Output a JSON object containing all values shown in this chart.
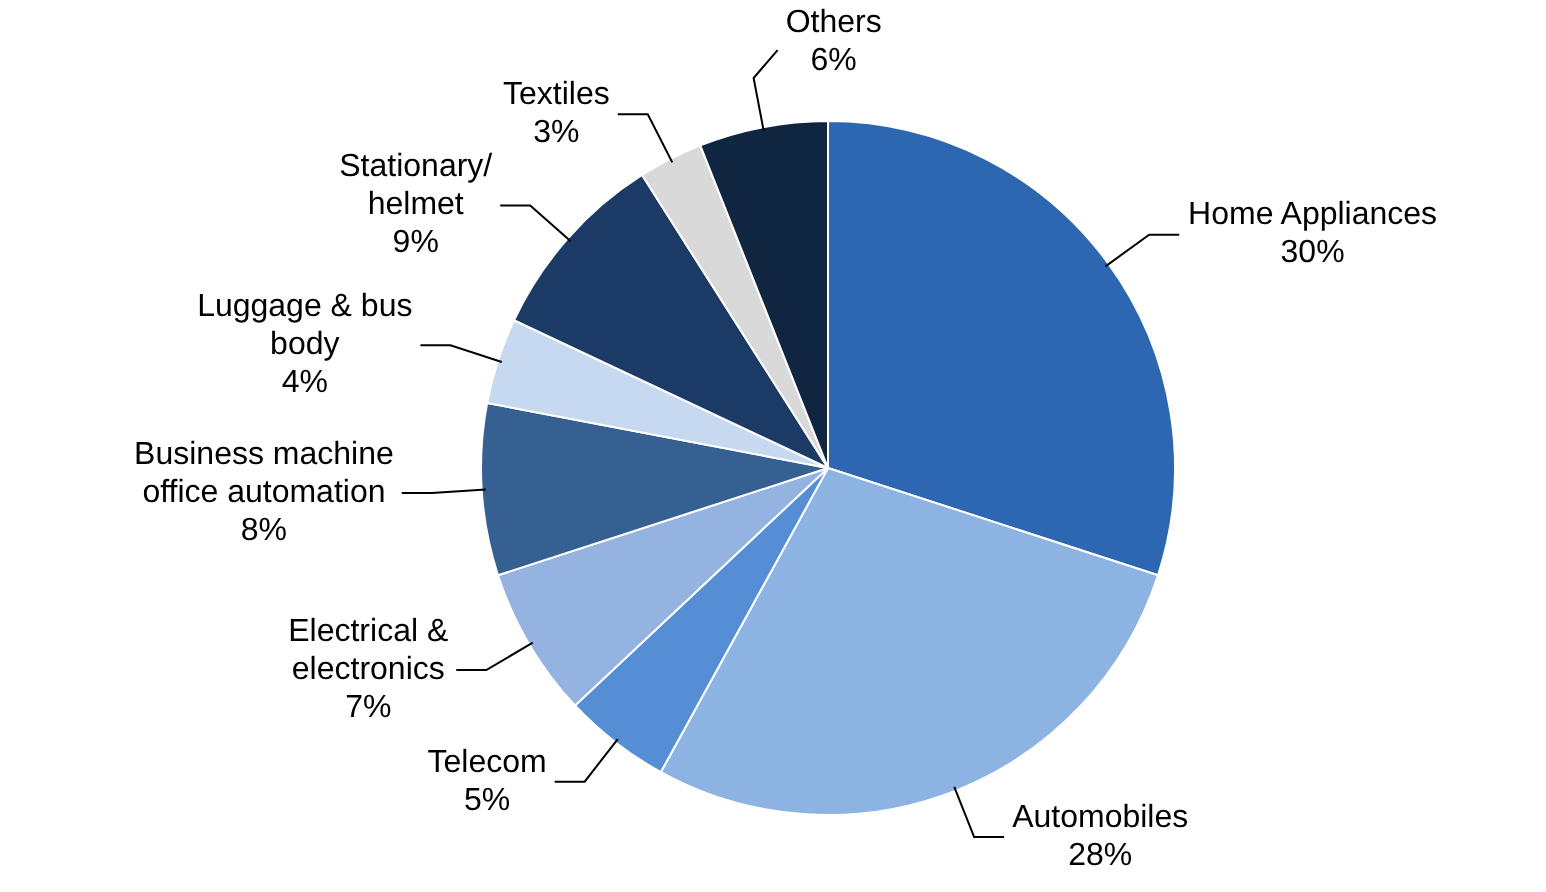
{
  "chart_data": {
    "type": "pie",
    "categories": [
      "Home Appliances",
      "Automobiles",
      "Telecom",
      "Electrical &\nelectronics",
      "Business machine\noffice automation",
      "Luggage & bus\nbody",
      "Stationary/\nhelmet",
      "Textiles",
      "Others"
    ],
    "values": [
      30,
      28,
      5,
      7,
      8,
      4,
      9,
      3,
      6
    ],
    "value_labels": [
      "30%",
      "28%",
      "5%",
      "7%",
      "8%",
      "4%",
      "9%",
      "3%",
      "6%"
    ],
    "colors": [
      "#2e67b1",
      "#8db3e2",
      "#558ed5",
      "#95b3e0",
      "#376092",
      "#c6d9f1",
      "#1c3a66",
      "#d9d9d9",
      "#10253f"
    ],
    "legend": false
  }
}
